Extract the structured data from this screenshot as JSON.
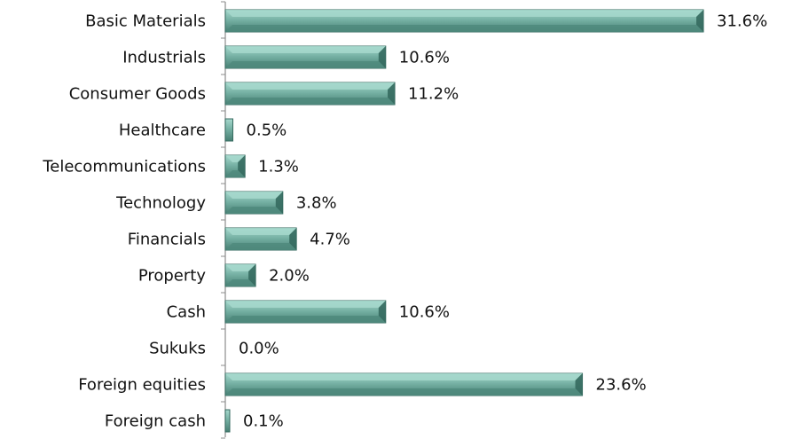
{
  "chart_data": {
    "type": "bar",
    "orientation": "horizontal",
    "categories": [
      "Basic Materials",
      "Industrials",
      "Consumer Goods",
      "Healthcare",
      "Telecommunications",
      "Technology",
      "Financials",
      "Property",
      "Cash",
      "Sukuks",
      "Foreign equities",
      "Foreign cash"
    ],
    "values": [
      31.6,
      10.6,
      11.2,
      0.5,
      1.3,
      3.8,
      4.7,
      2.0,
      10.6,
      0.0,
      23.6,
      0.1
    ],
    "data_labels": [
      "31.6%",
      "10.6%",
      "11.2%",
      "0.5%",
      "1.3%",
      "3.8%",
      "4.7%",
      "2.0%",
      "10.6%",
      "0.0%",
      "23.6%",
      "0.1%"
    ],
    "unit": "%",
    "grid": false,
    "colors": {
      "bar_fill": "#72ada0",
      "bar_highlight": "#a6d8cd",
      "bar_shadow": "#356a5f",
      "axis": "#8c8c8c"
    }
  }
}
